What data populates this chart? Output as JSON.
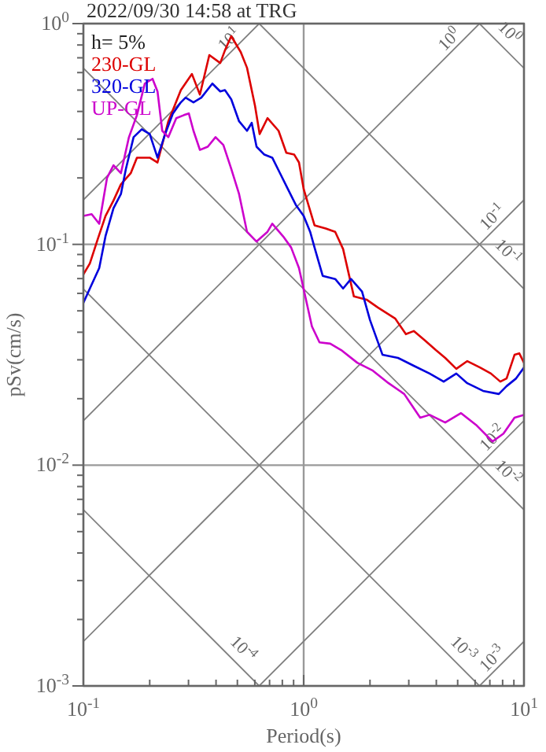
{
  "chart_data": {
    "type": "line",
    "title": "2022/09/30 14:58 at TRG",
    "xlabel": "Period(s)",
    "ylabel": "pSv(cm/s)",
    "log": "xy",
    "grid": true,
    "legend": "top left",
    "annotations": [
      "h= 5%"
    ],
    "xlim": [
      0.1,
      10
    ],
    "ylim": [
      0.001,
      1
    ],
    "xticks": [
      {
        "value": 0.1,
        "label": "10$^{-1}$"
      },
      {
        "value": 0.2,
        "label": null
      },
      {
        "value": 0.3,
        "label": null
      },
      {
        "value": 0.4,
        "label": null
      },
      {
        "value": 0.5,
        "label": null
      },
      {
        "value": 0.6,
        "label": null
      },
      {
        "value": 0.7,
        "label": null
      },
      {
        "value": 0.8,
        "label": null
      },
      {
        "value": 0.9,
        "label": null
      },
      {
        "value": 1,
        "label": "10$^{0}$"
      },
      {
        "value": 2,
        "label": null
      },
      {
        "value": 3,
        "label": null
      },
      {
        "value": 4,
        "label": null
      },
      {
        "value": 5,
        "label": null
      },
      {
        "value": 6,
        "label": null
      },
      {
        "value": 7,
        "label": null
      },
      {
        "value": 8,
        "label": null
      },
      {
        "value": 9,
        "label": null
      },
      {
        "value": 10,
        "label": "10$^{1}$"
      }
    ],
    "yticks": [
      {
        "value": 0.001,
        "label": "10$^{-3}$"
      },
      {
        "value": 0.002,
        "label": null
      },
      {
        "value": 0.003,
        "label": null
      },
      {
        "value": 0.004,
        "label": null
      },
      {
        "value": 0.005,
        "label": null
      },
      {
        "value": 0.006,
        "label": null
      },
      {
        "value": 0.007,
        "label": null
      },
      {
        "value": 0.008,
        "label": null
      },
      {
        "value": 0.009,
        "label": null
      },
      {
        "value": 0.01,
        "label": "10$^{-2}$"
      },
      {
        "value": 0.02,
        "label": null
      },
      {
        "value": 0.03,
        "label": null
      },
      {
        "value": 0.04,
        "label": null
      },
      {
        "value": 0.05,
        "label": null
      },
      {
        "value": 0.06,
        "label": null
      },
      {
        "value": 0.07,
        "label": null
      },
      {
        "value": 0.08,
        "label": null
      },
      {
        "value": 0.09,
        "label": null
      },
      {
        "value": 0.1,
        "label": "10$^{-1}$"
      },
      {
        "value": 0.2,
        "label": null
      },
      {
        "value": 0.3,
        "label": null
      },
      {
        "value": 0.4,
        "label": null
      },
      {
        "value": 0.5,
        "label": null
      },
      {
        "value": 0.6,
        "label": null
      },
      {
        "value": 0.7,
        "label": null
      },
      {
        "value": 0.8,
        "label": null
      },
      {
        "value": 0.9,
        "label": null
      },
      {
        "value": 1,
        "label": "10$^{0}$"
      }
    ],
    "series": [
      {
        "name": "10$^{1}$",
        "color": "#808080",
        "x": [
          0.1,
          0.628
        ],
        "values": [
          0.159,
          1
        ]
      },
      {
        "name": "10$^{0}$",
        "color": "#808080",
        "x": [
          0.1,
          6.28
        ],
        "values": [
          0.0159,
          1
        ]
      },
      {
        "name": "10$^{-1}$",
        "color": "#808080",
        "x": [
          0.1,
          10
        ],
        "values": [
          0.00159,
          0.159
        ]
      },
      {
        "name": "10$^{-2}$",
        "color": "#808080",
        "x": [
          0.628,
          10
        ],
        "values": [
          0.001,
          0.0159
        ]
      },
      {
        "name": "10$^{-3}$",
        "color": "#808080",
        "x": [
          6.28,
          10
        ],
        "values": [
          0.001,
          0.00159
        ]
      },
      {
        "name": "10$^{0}$",
        "color": "#808080",
        "x": [
          6.28,
          10
        ],
        "values": [
          1,
          0.628
        ]
      },
      {
        "name": "10$^{-1}$",
        "color": "#808080",
        "x": [
          0.628,
          10
        ],
        "values": [
          1,
          0.0628
        ]
      },
      {
        "name": "10$^{-2}$",
        "color": "#808080",
        "x": [
          0.1,
          10
        ],
        "values": [
          0.628,
          0.00628
        ]
      },
      {
        "name": "10$^{-3}$",
        "color": "#808080",
        "x": [
          0.1,
          6.28
        ],
        "values": [
          0.0628,
          0.001
        ]
      },
      {
        "name": "10$^{-4}$",
        "color": "#808080",
        "x": [
          0.1,
          0.628
        ],
        "values": [
          0.00628,
          0.001
        ]
      },
      {
        "name": "230-GL",
        "color": "#dd0000",
        "x": [
          0.1,
          0.107,
          0.116,
          0.126,
          0.137,
          0.148,
          0.164,
          0.175,
          0.2,
          0.217,
          0.243,
          0.277,
          0.311,
          0.338,
          0.373,
          0.418,
          0.439,
          0.469,
          0.518,
          0.553,
          0.601,
          0.631,
          0.685,
          0.769,
          0.834,
          0.906,
          0.952,
          1.0,
          1.12,
          1.26,
          1.39,
          1.51,
          1.69,
          1.93,
          2.17,
          2.6,
          2.91,
          3.16,
          3.55,
          3.98,
          4.39,
          4.93,
          5.53,
          6.31,
          7.08,
          7.81,
          8.34,
          9.06,
          9.52,
          10
        ],
        "values": [
          0.0731,
          0.082,
          0.105,
          0.1345,
          0.158,
          0.187,
          0.21,
          0.247,
          0.247,
          0.235,
          0.361,
          0.5,
          0.591,
          0.477,
          0.72,
          0.663,
          0.756,
          0.877,
          0.743,
          0.631,
          0.425,
          0.316,
          0.373,
          0.327,
          0.26,
          0.255,
          0.235,
          0.178,
          0.122,
          0.118,
          0.114,
          0.0952,
          0.0581,
          0.0562,
          0.0518,
          0.0462,
          0.0392,
          0.0405,
          0.0367,
          0.0332,
          0.0306,
          0.0273,
          0.0296,
          0.0277,
          0.026,
          0.0239,
          0.0247,
          0.0316,
          0.0321,
          0.0291
        ]
      },
      {
        "name": "320-GL",
        "color": "#0000dd",
        "x": [
          0.1,
          0.107,
          0.118,
          0.126,
          0.137,
          0.148,
          0.156,
          0.169,
          0.184,
          0.2,
          0.217,
          0.235,
          0.255,
          0.277,
          0.291,
          0.316,
          0.343,
          0.385,
          0.418,
          0.439,
          0.469,
          0.509,
          0.553,
          0.581,
          0.611,
          0.663,
          0.72,
          0.781,
          0.848,
          0.921,
          1.0,
          1.07,
          1.12,
          1.22,
          1.39,
          1.51,
          1.64,
          1.84,
          2.0,
          2.28,
          2.68,
          3.16,
          3.73,
          4.32,
          4.93,
          5.53,
          6.52,
          7.69,
          8.34,
          9.21,
          10
        ],
        "values": [
          0.0544,
          0.0631,
          0.0781,
          0.109,
          0.146,
          0.169,
          0.22,
          0.306,
          0.332,
          0.316,
          0.247,
          0.316,
          0.392,
          0.44,
          0.462,
          0.44,
          0.462,
          0.535,
          0.493,
          0.5,
          0.454,
          0.361,
          0.327,
          0.355,
          0.277,
          0.255,
          0.247,
          0.21,
          0.178,
          0.151,
          0.1345,
          0.114,
          0.0968,
          0.072,
          0.0697,
          0.0631,
          0.0697,
          0.0611,
          0.0454,
          0.0316,
          0.0306,
          0.0282,
          0.026,
          0.0239,
          0.026,
          0.0235,
          0.0217,
          0.021,
          0.0228,
          0.0247,
          0.0277
        ]
      },
      {
        "name": "UP-GL",
        "color": "#cc00cc",
        "x": [
          0.1,
          0.109,
          0.118,
          0.128,
          0.137,
          0.148,
          0.161,
          0.175,
          0.19,
          0.206,
          0.217,
          0.228,
          0.243,
          0.264,
          0.286,
          0.301,
          0.316,
          0.338,
          0.367,
          0.398,
          0.432,
          0.469,
          0.509,
          0.553,
          0.611,
          0.685,
          0.72,
          0.807,
          0.877,
          0.952,
          1.09,
          1.18,
          1.32,
          1.48,
          1.75,
          2.06,
          2.43,
          2.86,
          3.38,
          3.73,
          4.39,
          5.18,
          6.11,
          7.2,
          8.07,
          9.06,
          10
        ],
        "values": [
          0.1345,
          0.137,
          0.124,
          0.2,
          0.228,
          0.21,
          0.306,
          0.385,
          0.535,
          0.562,
          0.493,
          0.327,
          0.306,
          0.373,
          0.385,
          0.392,
          0.327,
          0.268,
          0.277,
          0.306,
          0.282,
          0.22,
          0.169,
          0.114,
          0.103,
          0.114,
          0.124,
          0.1086,
          0.0968,
          0.0781,
          0.0425,
          0.036,
          0.0355,
          0.0332,
          0.0291,
          0.0268,
          0.0235,
          0.021,
          0.0164,
          0.0169,
          0.0156,
          0.0172,
          0.0151,
          0.0128,
          0.0139,
          0.0164,
          0.0169
        ]
      }
    ]
  }
}
